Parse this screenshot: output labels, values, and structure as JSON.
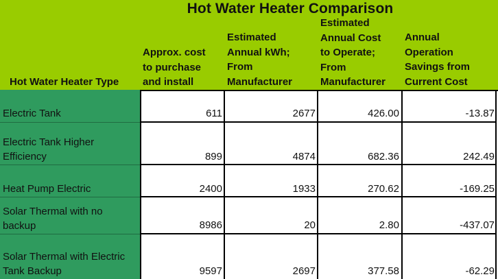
{
  "colors": {
    "header_green": "#99cc00",
    "type_green": "#2f9b5e"
  },
  "title": "Hot Water Heater Comparison",
  "headers": {
    "type": [
      "Hot Water Heater Type"
    ],
    "cost": [
      "Approx. cost",
      "to purchase",
      "and install"
    ],
    "kwh": [
      "Estimated",
      "Annual kWh;",
      "From",
      "Manufacturer"
    ],
    "annual_cost": [
      "Estimated",
      "Annual Cost",
      "to Operate;",
      "From",
      "Manufacturer"
    ],
    "savings": [
      "Annual",
      "Operation",
      "Savings from",
      "Current Cost"
    ]
  },
  "rows": [
    {
      "type": [
        "Electric Tank"
      ],
      "cost": "611",
      "kwh": "2677",
      "annual_cost": "426.00",
      "savings": "-13.87"
    },
    {
      "type": [
        "Electric Tank Higher",
        "Efficiency"
      ],
      "cost": "899",
      "kwh": "4874",
      "annual_cost": "682.36",
      "savings": "242.49"
    },
    {
      "type": [
        "Heat Pump Electric"
      ],
      "cost": "2400",
      "kwh": "1933",
      "annual_cost": "270.62",
      "savings": "-169.25"
    },
    {
      "type": [
        "Solar Thermal with no",
        "backup"
      ],
      "cost": "8986",
      "kwh": "20",
      "annual_cost": "2.80",
      "savings": "-437.07"
    },
    {
      "type": [
        "Solar Thermal with Electric",
        "Tank Backup"
      ],
      "cost": "9597",
      "kwh": "2697",
      "annual_cost": "377.58",
      "savings": "-62.29"
    }
  ]
}
